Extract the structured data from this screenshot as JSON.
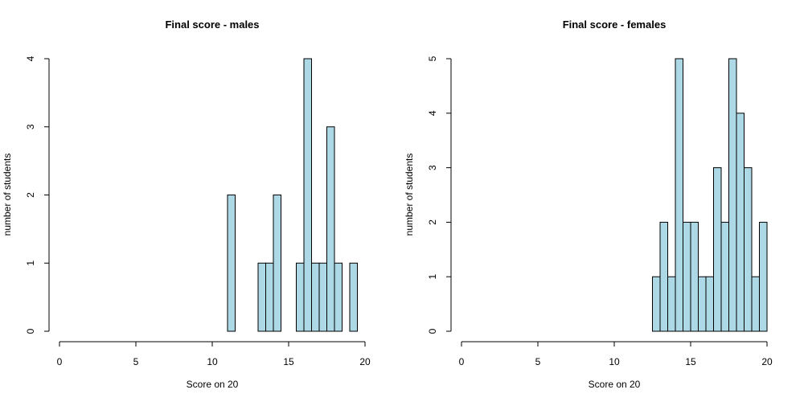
{
  "chart_data": [
    {
      "type": "bar",
      "title": "Final score - males",
      "xlabel": "Score on 20",
      "ylabel": "number of students",
      "xlim": [
        0,
        20
      ],
      "ylim": [
        0,
        4
      ],
      "xticks": [
        0,
        5,
        10,
        15,
        20
      ],
      "yticks": [
        0,
        1,
        2,
        3,
        4
      ],
      "bin_width": 0.5,
      "bins": [
        {
          "start": 11.0,
          "end": 11.5,
          "count": 2
        },
        {
          "start": 11.5,
          "end": 12.0,
          "count": 0
        },
        {
          "start": 12.0,
          "end": 12.5,
          "count": 0
        },
        {
          "start": 12.5,
          "end": 13.0,
          "count": 0
        },
        {
          "start": 13.0,
          "end": 13.5,
          "count": 1
        },
        {
          "start": 13.5,
          "end": 14.0,
          "count": 1
        },
        {
          "start": 14.0,
          "end": 14.5,
          "count": 2
        },
        {
          "start": 14.5,
          "end": 15.0,
          "count": 0
        },
        {
          "start": 15.0,
          "end": 15.5,
          "count": 0
        },
        {
          "start": 15.5,
          "end": 16.0,
          "count": 1
        },
        {
          "start": 16.0,
          "end": 16.5,
          "count": 4
        },
        {
          "start": 16.5,
          "end": 17.0,
          "count": 1
        },
        {
          "start": 17.0,
          "end": 17.5,
          "count": 1
        },
        {
          "start": 17.5,
          "end": 18.0,
          "count": 3
        },
        {
          "start": 18.0,
          "end": 18.5,
          "count": 1
        },
        {
          "start": 18.5,
          "end": 19.0,
          "count": 0
        },
        {
          "start": 19.0,
          "end": 19.5,
          "count": 1
        }
      ]
    },
    {
      "type": "bar",
      "title": "Final score - females",
      "xlabel": "Score on 20",
      "ylabel": "number of students",
      "xlim": [
        0,
        20
      ],
      "ylim": [
        0,
        5
      ],
      "xticks": [
        0,
        5,
        10,
        15,
        20
      ],
      "yticks": [
        0,
        1,
        2,
        3,
        4,
        5
      ],
      "bin_width": 0.5,
      "bins": [
        {
          "start": 12.5,
          "end": 13.0,
          "count": 1
        },
        {
          "start": 13.0,
          "end": 13.5,
          "count": 2
        },
        {
          "start": 13.5,
          "end": 14.0,
          "count": 1
        },
        {
          "start": 14.0,
          "end": 14.5,
          "count": 5
        },
        {
          "start": 14.5,
          "end": 15.0,
          "count": 2
        },
        {
          "start": 15.0,
          "end": 15.5,
          "count": 2
        },
        {
          "start": 15.5,
          "end": 16.0,
          "count": 1
        },
        {
          "start": 16.0,
          "end": 16.5,
          "count": 1
        },
        {
          "start": 16.5,
          "end": 17.0,
          "count": 3
        },
        {
          "start": 17.0,
          "end": 17.5,
          "count": 2
        },
        {
          "start": 17.5,
          "end": 18.0,
          "count": 5
        },
        {
          "start": 18.0,
          "end": 18.5,
          "count": 4
        },
        {
          "start": 18.5,
          "end": 19.0,
          "count": 3
        },
        {
          "start": 19.0,
          "end": 19.5,
          "count": 1
        },
        {
          "start": 19.5,
          "end": 20.0,
          "count": 2
        }
      ]
    }
  ]
}
